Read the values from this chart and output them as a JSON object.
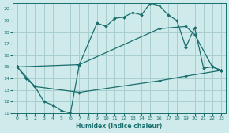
{
  "bg_color": "#ceeaea",
  "grid_color": "#a8cece",
  "line_color": "#1a6e6e",
  "xlabel": "Humidex (Indice chaleur)",
  "xlim": [
    -0.5,
    23.5
  ],
  "ylim": [
    11,
    20.5
  ],
  "yticks": [
    11,
    12,
    13,
    14,
    15,
    16,
    17,
    18,
    19,
    20
  ],
  "xticks": [
    0,
    1,
    2,
    3,
    4,
    5,
    6,
    7,
    8,
    9,
    10,
    11,
    12,
    13,
    14,
    15,
    16,
    17,
    18,
    19,
    20,
    21,
    22,
    23
  ],
  "line1_x": [
    0,
    1,
    2,
    3,
    4,
    5,
    6,
    7,
    9,
    10,
    11,
    12,
    13,
    14,
    15,
    16,
    17,
    18,
    19,
    20,
    21,
    22,
    23
  ],
  "line1_y": [
    15,
    14,
    13.3,
    12.0,
    11.7,
    11.2,
    11.0,
    15.2,
    18.8,
    18.5,
    19.2,
    19.3,
    19.7,
    19.5,
    20.5,
    20.3,
    19.5,
    19.0,
    16.7,
    18.4,
    14.9,
    15.0,
    14.7
  ],
  "line2_x": [
    0,
    7,
    16,
    19,
    20,
    22,
    23
  ],
  "line2_y": [
    15,
    15.2,
    18.3,
    18.5,
    17.8,
    15.0,
    14.7
  ],
  "line3_x": [
    0,
    2,
    7,
    16,
    19,
    23
  ],
  "line3_y": [
    15,
    13.3,
    12.8,
    13.8,
    14.2,
    14.7
  ]
}
